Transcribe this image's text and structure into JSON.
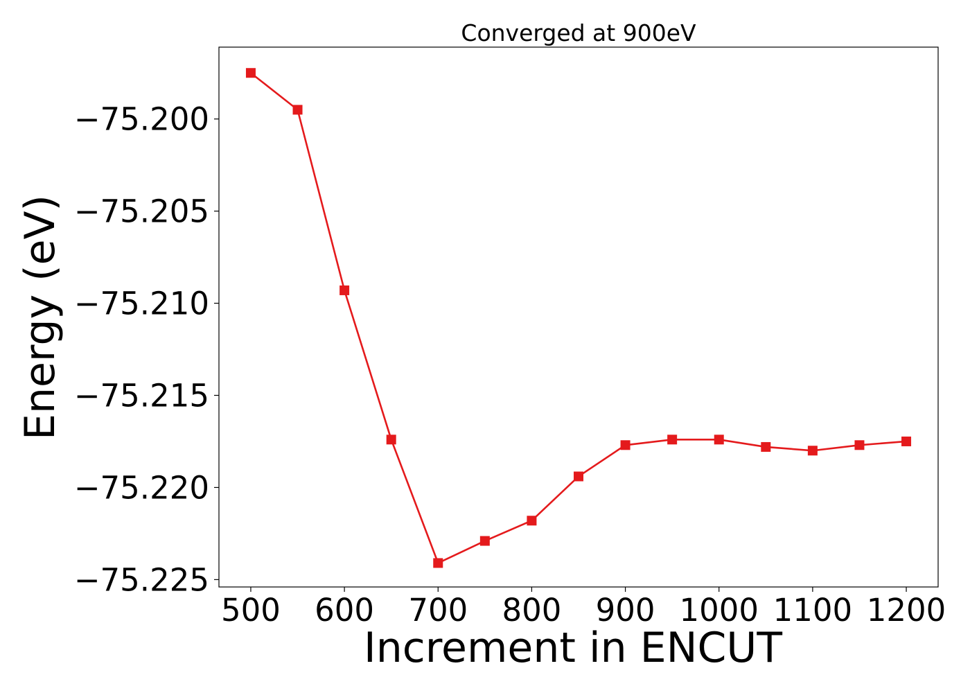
{
  "chart_data": {
    "type": "line",
    "title": "Converged at 900eV",
    "xlabel": "Increment in ENCUT",
    "ylabel": "Energy (eV)",
    "x": [
      500,
      550,
      600,
      650,
      700,
      750,
      800,
      850,
      900,
      950,
      1000,
      1050,
      1100,
      1150,
      1200
    ],
    "series": [
      {
        "values": [
          -75.1975,
          -75.1995,
          -75.2093,
          -75.2174,
          -75.2241,
          -75.2229,
          -75.2218,
          -75.2194,
          -75.2177,
          -75.2174,
          -75.2174,
          -75.2178,
          -75.218,
          -75.2177,
          -75.2175
        ],
        "color": "#e41a1c",
        "marker": "square"
      }
    ],
    "xlim": [
      466,
      1234
    ],
    "ylim": [
      -75.2254,
      -75.1961
    ],
    "xticks": [
      500,
      600,
      700,
      800,
      900,
      1000,
      1100,
      1200
    ],
    "xtick_labels": [
      "500",
      "600",
      "700",
      "800",
      "900",
      "1000",
      "1100",
      "1200"
    ],
    "yticks": [
      -75.2,
      -75.205,
      -75.21,
      -75.215,
      -75.22,
      -75.225
    ],
    "ytick_labels": [
      "−75.200",
      "−75.205",
      "−75.210",
      "−75.215",
      "−75.220",
      "−75.225"
    ],
    "grid": false,
    "legend": "none"
  }
}
